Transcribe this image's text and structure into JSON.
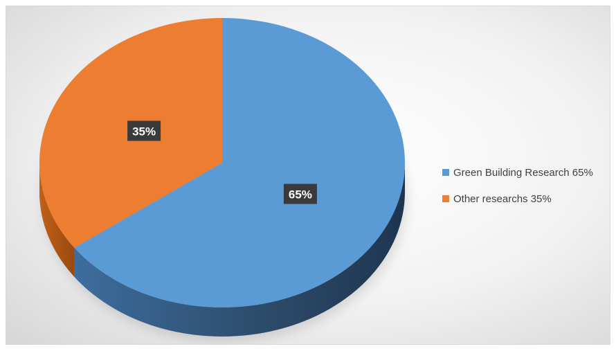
{
  "chart_data": {
    "type": "pie",
    "title": "",
    "categories": [
      "Green Building Research",
      "Other researchs"
    ],
    "values": [
      65,
      35
    ],
    "data_labels": [
      "65%",
      "35%"
    ],
    "colors": [
      "#5b9bd5",
      "#ed7d31"
    ],
    "side_colors": [
      "#2c4a68",
      "#a65210"
    ],
    "start_angle_deg": 0,
    "direction": "clockwise",
    "style": "3d",
    "legend": {
      "position": "right",
      "entries": [
        "Green Building Research 65%",
        "Other researchs 35%"
      ]
    }
  }
}
